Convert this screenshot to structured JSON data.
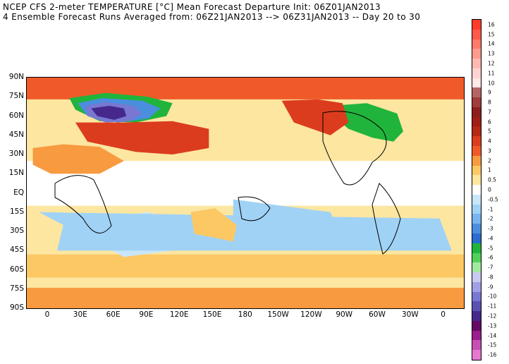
{
  "title_line1": "NCEP CFS 2-meter TEMPERATURE [°C] Mean Forecast Departure Init: 06Z01JAN2013",
  "title_line2": "4 Ensemble Forecast Runs Averaged from: 06Z21JAN2013 --> 06Z31JAN2013 -- Day 20 to 30",
  "lat_labels": [
    "90N",
    "75N",
    "60N",
    "45N",
    "30N",
    "15N",
    "EQ",
    "15S",
    "30S",
    "45S",
    "60S",
    "75S",
    "90S"
  ],
  "lon_labels": [
    "0",
    "30E",
    "60E",
    "90E",
    "120E",
    "150E",
    "180",
    "150W",
    "120W",
    "90W",
    "60W",
    "30W",
    "0"
  ],
  "colorbar": {
    "labels": [
      "16",
      "15",
      "14",
      "13",
      "12",
      "11",
      "10",
      "9",
      "8",
      "7",
      "6",
      "5",
      "4",
      "3",
      "2",
      "1",
      "0.5",
      "0",
      "-0.5",
      "-1",
      "-2",
      "-3",
      "-4",
      "-5",
      "-6",
      "-7",
      "-8",
      "-9",
      "-10",
      "-11",
      "-12",
      "-13",
      "-14",
      "-15",
      "-16"
    ],
    "colors": [
      "#ff3b2b",
      "#ff5a4a",
      "#ff7a6a",
      "#ff9a8c",
      "#ffb8b0",
      "#ffd4d0",
      "#ffe8e5",
      "#b46464",
      "#a03c3c",
      "#8c1e1e",
      "#a01e14",
      "#b42814",
      "#dc3c1e",
      "#f05a28",
      "#f89a40",
      "#fcc864",
      "#fce6a0",
      "#ffffff",
      "#c8e6fa",
      "#a0d2f5",
      "#78b4ee",
      "#4a8ee0",
      "#2a6cd0",
      "#20b43c",
      "#50d25a",
      "#a0eaa0",
      "#c8c8f0",
      "#a0a0e6",
      "#7878d2",
      "#5a50b4",
      "#46288c",
      "#640a64",
      "#9b1e8c",
      "#c850b4",
      "#e678d2"
    ]
  },
  "map": {
    "regions": [
      {
        "name": "arctic-warm-band",
        "lon": [
          -180,
          180,
          180,
          -180
        ],
        "lat": [
          90,
          90,
          73,
          73
        ],
        "color": "#f05a28"
      },
      {
        "name": "russia-cold-core",
        "lon": [
          15,
          45,
          80,
          100,
          95,
          70,
          40,
          20
        ],
        "lat": [
          74,
          78,
          75,
          70,
          60,
          55,
          56,
          65
        ],
        "color": "#20b43c"
      },
      {
        "name": "russia-blue",
        "lon": [
          22,
          42,
          75,
          90,
          80,
          55,
          30
        ],
        "lat": [
          70,
          74,
          72,
          66,
          58,
          55,
          60
        ],
        "color": "#4a8ee0"
      },
      {
        "name": "russia-purple",
        "lon": [
          28,
          45,
          68,
          75,
          65,
          45,
          30
        ],
        "lat": [
          68,
          71,
          68,
          62,
          56,
          55,
          60
        ],
        "color": "#7878d2"
      },
      {
        "name": "russia-deep-purple",
        "lon": [
          33,
          48,
          60,
          62,
          52,
          38
        ],
        "lat": [
          66,
          68,
          66,
          60,
          57,
          60
        ],
        "color": "#46288c"
      },
      {
        "name": "canada-cold",
        "lon": [
          -130,
          -100,
          -75,
          -70,
          -78,
          -95,
          -115,
          -125
        ],
        "lat": [
          68,
          70,
          62,
          48,
          40,
          43,
          50,
          58
        ],
        "color": "#20b43c"
      },
      {
        "name": "asia-warm",
        "lon": [
          20,
          60,
          100,
          130,
          130,
          100,
          70,
          30
        ],
        "lat": [
          55,
          55,
          56,
          50,
          35,
          30,
          32,
          40
        ],
        "color": "#dc3c1e"
      },
      {
        "name": "us-west-warm",
        "lon": [
          -170,
          -140,
          -120,
          -115,
          -130,
          -160
        ],
        "lat": [
          72,
          73,
          70,
          55,
          45,
          55
        ],
        "color": "#dc3c1e"
      },
      {
        "name": "north-africa-warm",
        "lon": [
          -15,
          10,
          40,
          60,
          40,
          0,
          -15
        ],
        "lat": [
          35,
          38,
          36,
          25,
          15,
          15,
          22
        ],
        "color": "#f89a40"
      },
      {
        "name": "southern-ocean-warm",
        "lon": [
          -180,
          180,
          180,
          -180
        ],
        "lat": [
          -48,
          -48,
          -66,
          -66
        ],
        "color": "#fcc864"
      },
      {
        "name": "antarctic-warm",
        "lon": [
          -180,
          180,
          180,
          -180
        ],
        "lat": [
          -74,
          -74,
          -90,
          -90
        ],
        "color": "#f89a40"
      },
      {
        "name": "pacific-cool",
        "lon": [
          150,
          190,
          230,
          240,
          220,
          180,
          150
        ],
        "lat": [
          -5,
          -10,
          -15,
          -35,
          -45,
          -40,
          -25
        ],
        "color": "#a0d2f5"
      },
      {
        "name": "indian-cool",
        "lon": [
          40,
          80,
          110,
          100,
          60,
          40
        ],
        "lat": [
          -20,
          -15,
          -25,
          -45,
          -50,
          -40
        ],
        "color": "#c8e6fa"
      },
      {
        "name": "south-atlantic-cool",
        "lon": [
          -40,
          -10,
          10,
          5,
          -30
        ],
        "lat": [
          -20,
          -15,
          -25,
          -45,
          -45
        ],
        "color": "#a0d2f5"
      },
      {
        "name": "australia-warm",
        "lon": [
          115,
          135,
          153,
          150,
          135,
          118
        ],
        "lat": [
          -15,
          -12,
          -25,
          -38,
          -35,
          -32
        ],
        "color": "#fcc864"
      }
    ]
  }
}
